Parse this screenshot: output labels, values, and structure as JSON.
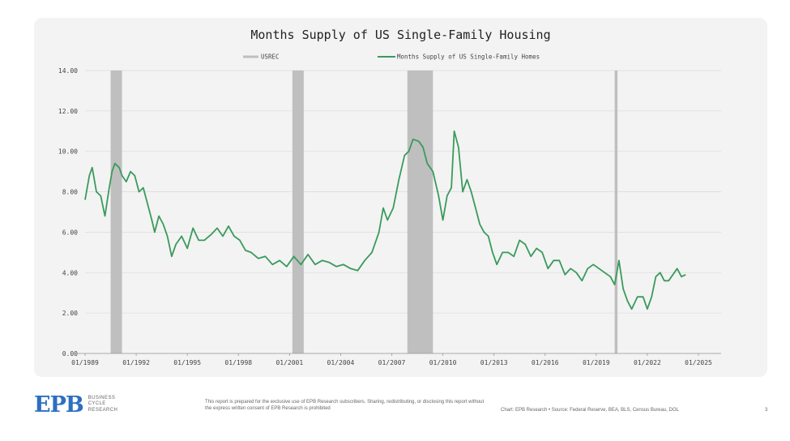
{
  "chart_data": {
    "type": "line",
    "title": "Months Supply of US Single-Family Housing",
    "xlabel": "",
    "ylabel": "",
    "ylim": [
      0,
      14
    ],
    "xlim": [
      "1989-01",
      "2025-01"
    ],
    "y_ticks": [
      "0.00",
      "2.00",
      "4.00",
      "6.00",
      "8.00",
      "10.00",
      "12.00",
      "14.00"
    ],
    "x_ticks": [
      "01/1989",
      "01/1992",
      "01/1995",
      "01/1998",
      "01/2001",
      "01/2004",
      "01/2007",
      "01/2010",
      "01/2013",
      "01/2016",
      "01/2019",
      "01/2022",
      "01/2025"
    ],
    "grid": true,
    "legend": {
      "placement": "top-center",
      "entries": [
        {
          "name": "USREC",
          "color": "#bfbfbf",
          "kind": "band"
        },
        {
          "name": "Months Supply of US Single-Family Homes",
          "color": "#3a9a5c",
          "kind": "line"
        }
      ]
    },
    "recessions": [
      {
        "start": "1990-07",
        "end": "1991-03"
      },
      {
        "start": "2001-03",
        "end": "2001-11"
      },
      {
        "start": "2007-12",
        "end": "2009-06"
      },
      {
        "start": "2020-02",
        "end": "2020-04"
      }
    ],
    "series": [
      {
        "name": "Months Supply of US Single-Family Homes",
        "color": "#3a9a5c",
        "points": [
          [
            "1989-01",
            7.6
          ],
          [
            "1989-04",
            8.8
          ],
          [
            "1989-06",
            9.2
          ],
          [
            "1989-09",
            8.0
          ],
          [
            "1989-12",
            7.8
          ],
          [
            "1990-03",
            6.8
          ],
          [
            "1990-06",
            8.2
          ],
          [
            "1990-08",
            9.0
          ],
          [
            "1990-10",
            9.4
          ],
          [
            "1991-01",
            9.2
          ],
          [
            "1991-03",
            8.8
          ],
          [
            "1991-06",
            8.5
          ],
          [
            "1991-09",
            9.0
          ],
          [
            "1991-12",
            8.8
          ],
          [
            "1992-03",
            8.0
          ],
          [
            "1992-06",
            8.2
          ],
          [
            "1992-09",
            7.4
          ],
          [
            "1992-12",
            6.6
          ],
          [
            "1993-02",
            6.0
          ],
          [
            "1993-05",
            6.8
          ],
          [
            "1993-08",
            6.4
          ],
          [
            "1993-11",
            5.8
          ],
          [
            "1994-02",
            4.8
          ],
          [
            "1994-05",
            5.4
          ],
          [
            "1994-09",
            5.8
          ],
          [
            "1995-01",
            5.2
          ],
          [
            "1995-05",
            6.2
          ],
          [
            "1995-09",
            5.6
          ],
          [
            "1996-01",
            5.6
          ],
          [
            "1996-06",
            5.9
          ],
          [
            "1996-10",
            6.2
          ],
          [
            "1997-02",
            5.8
          ],
          [
            "1997-06",
            6.3
          ],
          [
            "1997-10",
            5.8
          ],
          [
            "1998-02",
            5.6
          ],
          [
            "1998-06",
            5.1
          ],
          [
            "1998-10",
            5.0
          ],
          [
            "1999-03",
            4.7
          ],
          [
            "1999-08",
            4.8
          ],
          [
            "2000-01",
            4.4
          ],
          [
            "2000-06",
            4.6
          ],
          [
            "2000-11",
            4.3
          ],
          [
            "2001-04",
            4.8
          ],
          [
            "2001-09",
            4.4
          ],
          [
            "2002-02",
            4.9
          ],
          [
            "2002-07",
            4.4
          ],
          [
            "2002-12",
            4.6
          ],
          [
            "2003-05",
            4.5
          ],
          [
            "2003-10",
            4.3
          ],
          [
            "2004-03",
            4.4
          ],
          [
            "2004-08",
            4.2
          ],
          [
            "2005-01",
            4.1
          ],
          [
            "2005-06",
            4.6
          ],
          [
            "2005-11",
            5.0
          ],
          [
            "2006-04",
            6.0
          ],
          [
            "2006-07",
            7.2
          ],
          [
            "2006-10",
            6.6
          ],
          [
            "2007-02",
            7.2
          ],
          [
            "2007-06",
            8.6
          ],
          [
            "2007-10",
            9.8
          ],
          [
            "2008-01",
            10.0
          ],
          [
            "2008-04",
            10.6
          ],
          [
            "2008-08",
            10.5
          ],
          [
            "2008-11",
            10.2
          ],
          [
            "2009-02",
            9.4
          ],
          [
            "2009-06",
            9.0
          ],
          [
            "2009-10",
            7.8
          ],
          [
            "2010-01",
            6.6
          ],
          [
            "2010-04",
            7.8
          ],
          [
            "2010-07",
            8.2
          ],
          [
            "2010-09",
            11.0
          ],
          [
            "2010-12",
            10.2
          ],
          [
            "2011-03",
            8.0
          ],
          [
            "2011-06",
            8.6
          ],
          [
            "2011-09",
            8.0
          ],
          [
            "2011-12",
            7.2
          ],
          [
            "2012-03",
            6.4
          ],
          [
            "2012-06",
            6.0
          ],
          [
            "2012-09",
            5.8
          ],
          [
            "2012-12",
            5.0
          ],
          [
            "2013-03",
            4.4
          ],
          [
            "2013-07",
            5.0
          ],
          [
            "2013-11",
            5.0
          ],
          [
            "2014-03",
            4.8
          ],
          [
            "2014-07",
            5.6
          ],
          [
            "2014-11",
            5.4
          ],
          [
            "2015-03",
            4.8
          ],
          [
            "2015-07",
            5.2
          ],
          [
            "2015-11",
            5.0
          ],
          [
            "2016-03",
            4.2
          ],
          [
            "2016-07",
            4.6
          ],
          [
            "2016-11",
            4.6
          ],
          [
            "2017-03",
            3.9
          ],
          [
            "2017-07",
            4.2
          ],
          [
            "2017-11",
            4.0
          ],
          [
            "2018-03",
            3.6
          ],
          [
            "2018-07",
            4.2
          ],
          [
            "2018-11",
            4.4
          ],
          [
            "2019-03",
            4.2
          ],
          [
            "2019-07",
            4.0
          ],
          [
            "2019-11",
            3.8
          ],
          [
            "2020-02",
            3.4
          ],
          [
            "2020-05",
            4.6
          ],
          [
            "2020-08",
            3.2
          ],
          [
            "2020-11",
            2.6
          ],
          [
            "2021-02",
            2.2
          ],
          [
            "2021-06",
            2.8
          ],
          [
            "2021-10",
            2.8
          ],
          [
            "2022-01",
            2.2
          ],
          [
            "2022-04",
            2.8
          ],
          [
            "2022-07",
            3.8
          ],
          [
            "2022-10",
            4.0
          ],
          [
            "2023-01",
            3.6
          ],
          [
            "2023-04",
            3.6
          ],
          [
            "2023-07",
            3.9
          ],
          [
            "2023-10",
            4.2
          ],
          [
            "2024-01",
            3.8
          ],
          [
            "2024-04",
            3.9
          ]
        ]
      }
    ]
  },
  "footer": {
    "logo_mark": "EPB",
    "logo_line1": "BUSINESS",
    "logo_line2": "CYCLE",
    "logo_line3": "RESEARCH",
    "disclaimer": "This report is prepared for the exclusive use of EPB Research subscribers. Sharing, redistributing, or disclosing this report without the express written consent of EPB Research is prohibited",
    "source": "Chart: EPB Research  •  Source: Federal Reserve, BEA, BLS, Census Bureau, DOL",
    "page_number": "3"
  }
}
